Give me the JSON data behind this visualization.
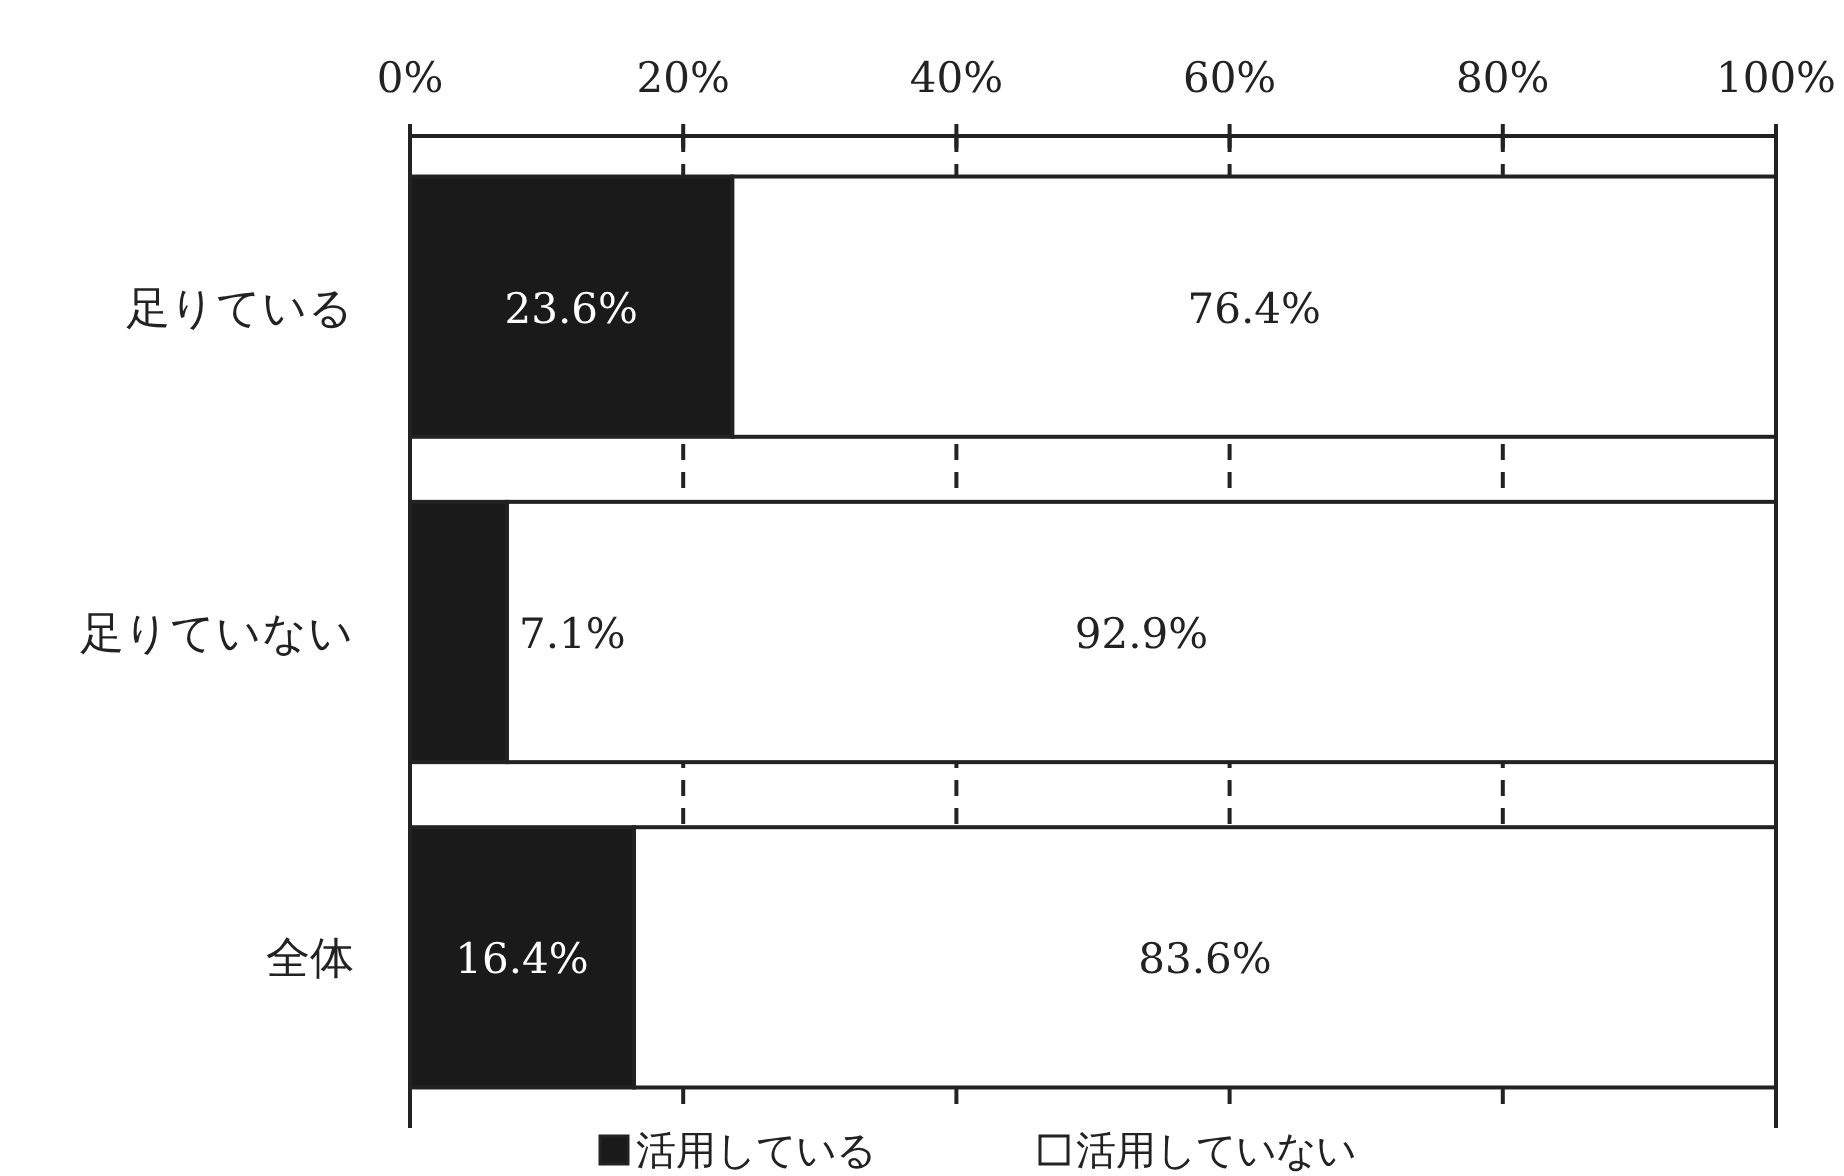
{
  "chart_data": {
    "type": "bar",
    "orientation": "horizontal",
    "stacked": true,
    "categories": [
      "足りている",
      "足りていない",
      "全体"
    ],
    "series": [
      {
        "name": "活用している",
        "color": "#1a1a1a",
        "values": [
          23.6,
          7.1,
          16.4
        ],
        "value_labels": [
          "23.6%",
          "7.1%",
          "16.4%"
        ]
      },
      {
        "name": "活用していない",
        "color": "#ffffff",
        "values": [
          76.4,
          92.9,
          83.6
        ],
        "value_labels": [
          "76.4%",
          "92.9%",
          "83.6%"
        ]
      }
    ],
    "xlim": [
      0,
      100
    ],
    "xticks": [
      {
        "value": 0,
        "label": "0%"
      },
      {
        "value": 20,
        "label": "20%"
      },
      {
        "value": 40,
        "label": "40%"
      },
      {
        "value": 60,
        "label": "60%"
      },
      {
        "value": 80,
        "label": "80%"
      },
      {
        "value": 100,
        "label": "100%"
      }
    ],
    "grid": "x",
    "line_style": "dashed",
    "legend": "bottom"
  }
}
